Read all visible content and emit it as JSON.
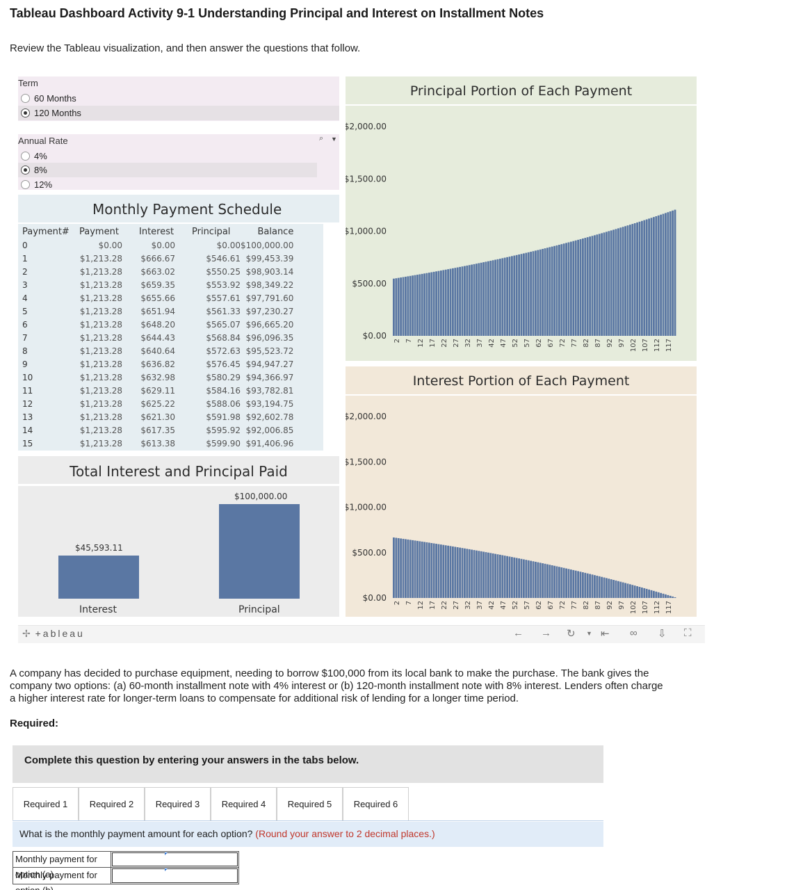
{
  "page": {
    "title": "Tableau Dashboard Activity 9-1 Understanding Principal and Interest on Installment Notes",
    "intro": "Review the Tableau visualization, and then answer the questions that follow."
  },
  "term": {
    "title": "Term",
    "options": [
      {
        "label": "60 Months",
        "selected": false
      },
      {
        "label": "120 Months",
        "selected": true
      }
    ]
  },
  "rate": {
    "title": "Annual Rate",
    "options": [
      {
        "label": "4%",
        "selected": false
      },
      {
        "label": "8%",
        "selected": true
      },
      {
        "label": "12%",
        "selected": false
      }
    ]
  },
  "schedule": {
    "title": "Monthly Payment Schedule",
    "headers": [
      "Payment#",
      "Payment",
      "Interest",
      "Principal",
      "Balance"
    ],
    "rows": [
      [
        "0",
        "$0.00",
        "$0.00",
        "$0.00",
        "$100,000.00"
      ],
      [
        "1",
        "$1,213.28",
        "$666.67",
        "$546.61",
        "$99,453.39"
      ],
      [
        "2",
        "$1,213.28",
        "$663.02",
        "$550.25",
        "$98,903.14"
      ],
      [
        "3",
        "$1,213.28",
        "$659.35",
        "$553.92",
        "$98,349.22"
      ],
      [
        "4",
        "$1,213.28",
        "$655.66",
        "$557.61",
        "$97,791.60"
      ],
      [
        "5",
        "$1,213.28",
        "$651.94",
        "$561.33",
        "$97,230.27"
      ],
      [
        "6",
        "$1,213.28",
        "$648.20",
        "$565.07",
        "$96,665.20"
      ],
      [
        "7",
        "$1,213.28",
        "$644.43",
        "$568.84",
        "$96,096.35"
      ],
      [
        "8",
        "$1,213.28",
        "$640.64",
        "$572.63",
        "$95,523.72"
      ],
      [
        "9",
        "$1,213.28",
        "$636.82",
        "$576.45",
        "$94,947.27"
      ],
      [
        "10",
        "$1,213.28",
        "$632.98",
        "$580.29",
        "$94,366.97"
      ],
      [
        "11",
        "$1,213.28",
        "$629.11",
        "$584.16",
        "$93,782.81"
      ],
      [
        "12",
        "$1,213.28",
        "$625.22",
        "$588.06",
        "$93,194.75"
      ],
      [
        "13",
        "$1,213.28",
        "$621.30",
        "$591.98",
        "$92,602.78"
      ],
      [
        "14",
        "$1,213.28",
        "$617.35",
        "$595.92",
        "$92,006.85"
      ],
      [
        "15",
        "$1,213.28",
        "$613.38",
        "$599.90",
        "$91,406.96"
      ]
    ]
  },
  "totals": {
    "title": "Total Interest and Principal Paid",
    "interest_label": "Interest",
    "interest_value": "$45,593.11",
    "principal_label": "Principal",
    "principal_value": "$100,000.00"
  },
  "chart_data": [
    {
      "type": "bar",
      "title": "Principal Portion of Each Payment",
      "y_ticks": [
        "$2,000.00",
        "$1,500.00",
        "$1,000.00",
        "$500.00",
        "$0.00"
      ],
      "ylim": [
        0,
        2000
      ],
      "x_ticks": [
        "2",
        "7",
        "12",
        "17",
        "22",
        "27",
        "32",
        "37",
        "42",
        "47",
        "52",
        "57",
        "62",
        "67",
        "72",
        "77",
        "82",
        "87",
        "92",
        "97",
        "102",
        "107",
        "112",
        "117"
      ],
      "x_range": [
        1,
        120
      ],
      "series": [
        {
          "start": 546.61,
          "end": 1205.24
        }
      ],
      "colors": {
        "bar": "#5a77a3",
        "bg": "#e6ecdc"
      }
    },
    {
      "type": "bar",
      "title": "Interest Portion of Each Payment",
      "y_ticks": [
        "$2,000.00",
        "$1,500.00",
        "$1,000.00",
        "$500.00",
        "$0.00"
      ],
      "ylim": [
        0,
        2000
      ],
      "x_ticks": [
        "2",
        "7",
        "12",
        "17",
        "22",
        "27",
        "32",
        "37",
        "42",
        "47",
        "52",
        "57",
        "62",
        "67",
        "72",
        "77",
        "82",
        "87",
        "92",
        "97",
        "102",
        "107",
        "112",
        "117"
      ],
      "x_range": [
        1,
        120
      ],
      "series": [
        {
          "start": 666.67,
          "end": 8.04
        }
      ],
      "colors": {
        "bar": "#5a77a3",
        "bg": "#f2e8d9"
      }
    }
  ],
  "toolbar": {
    "brand": "+ableau",
    "icons": [
      "undo-icon",
      "redo-icon",
      "revert-icon",
      "dropdown-icon",
      "reset-icon",
      "share-icon",
      "download-icon",
      "fullscreen-icon"
    ]
  },
  "question_text": {
    "paragraph": "A company has decided to purchase equipment, needing to borrow $100,000 from its local bank to make the purchase. The bank gives the company two options: (a) 60-month installment note with 4% interest or (b) 120-month installment note with 8% interest. Lenders often charge a higher interest rate for longer-term loans to compensate for additional risk of lending for a longer time period.",
    "required": "Required:",
    "instruction": "Complete this question by entering your answers in the tabs below.",
    "tabs": [
      "Required 1",
      "Required 2",
      "Required 3",
      "Required 4",
      "Required 5",
      "Required 6"
    ],
    "prompt": "What is the monthly payment amount for each option?",
    "hint": "(Round your answer to 2 decimal places.)",
    "answers": [
      {
        "label": "Monthly payment for option (a)",
        "value": ""
      },
      {
        "label": "Monthly payment for option (b)",
        "value": ""
      }
    ]
  }
}
